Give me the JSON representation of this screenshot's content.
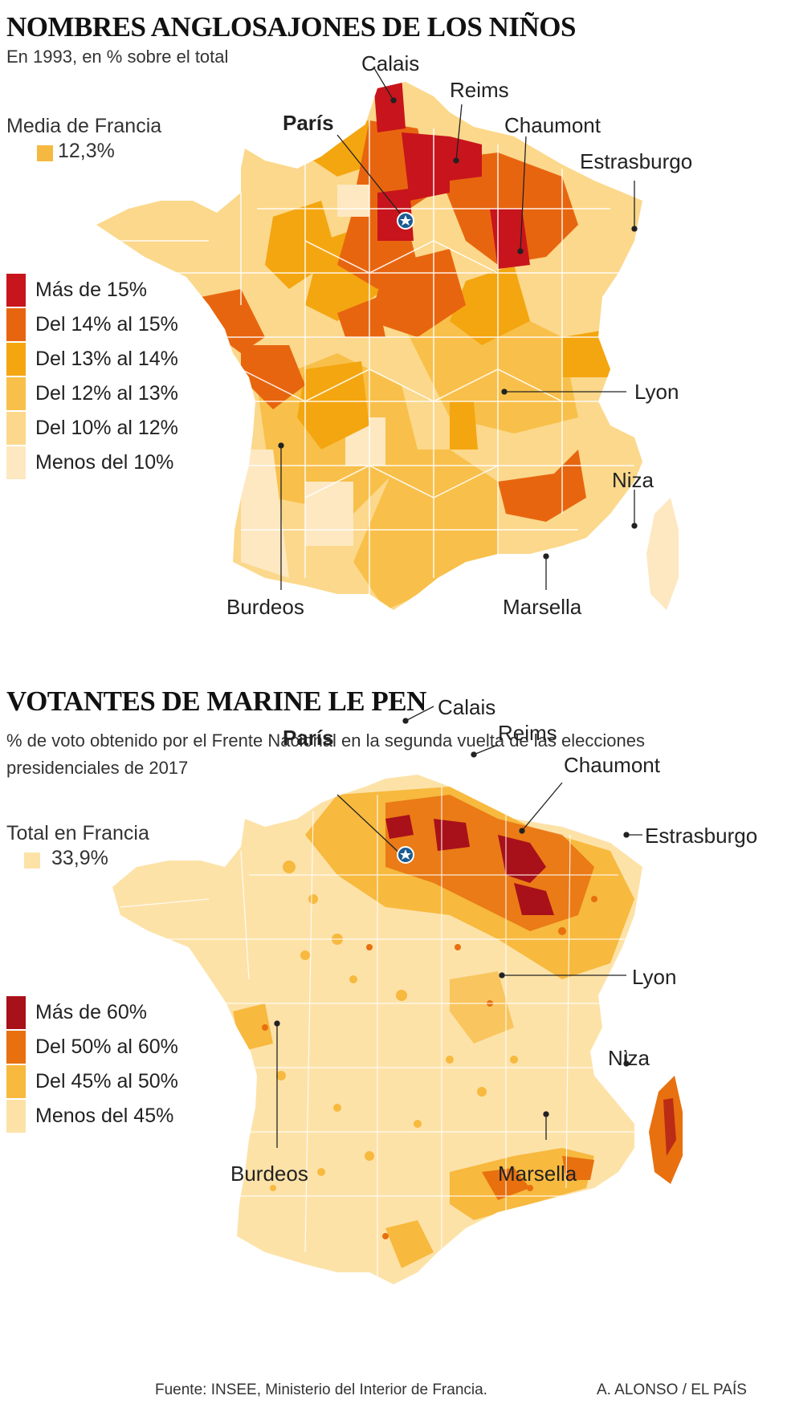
{
  "map1": {
    "title": "NOMBRES ANGLOSAJONES DE LOS NIÑOS",
    "subtitle": "En 1993, en % sobre el total",
    "average": {
      "label": "Media de Francia",
      "value": "12,3%",
      "color": "#f5b942"
    },
    "legend": [
      {
        "label": "Más de 15%",
        "color": "#c8141c"
      },
      {
        "label": "Del 14% al 15%",
        "color": "#e8650f"
      },
      {
        "label": "Del 13% al 14%",
        "color": "#f4a610"
      },
      {
        "label": "Del 12% al 13%",
        "color": "#f8c04a"
      },
      {
        "label": "Del 10% al 12%",
        "color": "#fbd88b"
      },
      {
        "label": "Menos del 10%",
        "color": "#fde8c2"
      }
    ],
    "cities": {
      "calais": "Calais",
      "reims": "Reims",
      "chaumont": "Chaumont",
      "estrasburgo": "Estrasburgo",
      "paris": "París",
      "lyon": "Lyon",
      "niza": "Niza",
      "burdeos": "Burdeos",
      "marsella": "Marsella"
    }
  },
  "map2": {
    "title": "VOTANTES DE MARINE LE PEN",
    "subtitle": "% de voto obtenido por el Frente Nacional en la segunda vuelta de las elecciones presidenciales de 2017",
    "average": {
      "label": "Total en Francia",
      "value": "33,9%",
      "color": "#fde2a8"
    },
    "legend": [
      {
        "label": "Más de 60%",
        "color": "#a8101a"
      },
      {
        "label": "Del 50% al 60%",
        "color": "#e8700f"
      },
      {
        "label": "Del 45% al 50%",
        "color": "#f7b93e"
      },
      {
        "label": "Menos del 45%",
        "color": "#fde2a8"
      }
    ],
    "cities": {
      "calais": "Calais",
      "reims": "Reims",
      "chaumont": "Chaumont",
      "estrasburgo": "Estrasburgo",
      "paris": "París",
      "lyon": "Lyon",
      "niza": "Niza",
      "burdeos": "Burdeos",
      "marsella": "Marsella"
    }
  },
  "footer": {
    "source": "Fuente: INSEE, Ministerio del Interior de Francia.",
    "credit": "A. ALONSO / EL PAÍS"
  }
}
